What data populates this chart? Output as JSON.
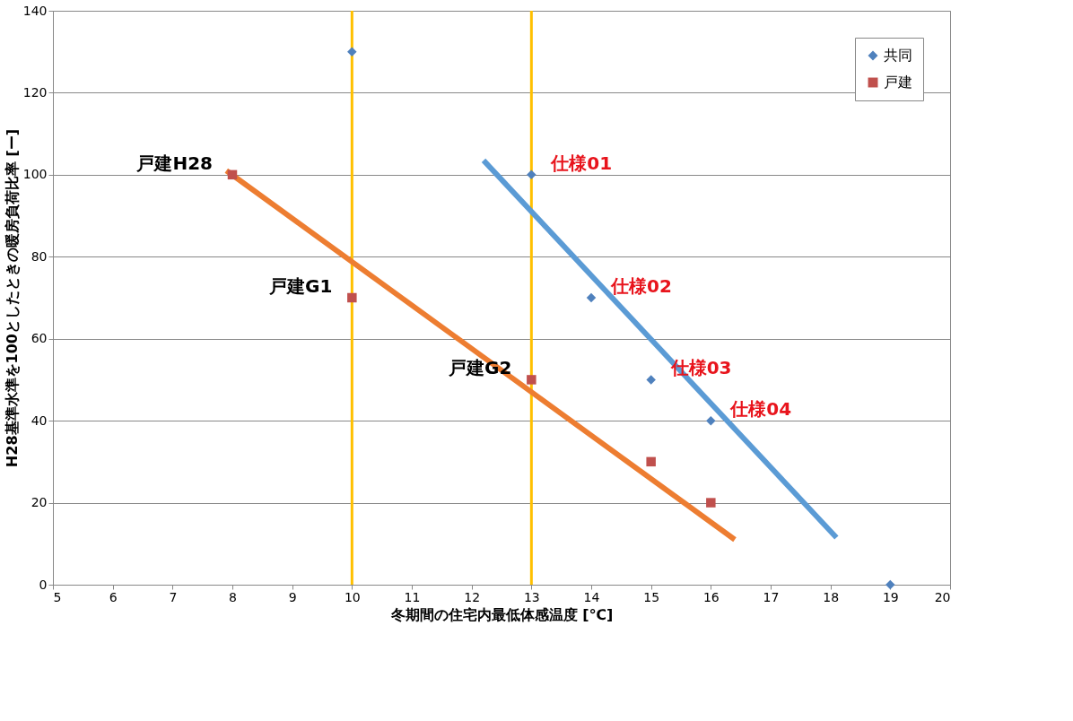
{
  "chart_data": {
    "type": "scatter",
    "xlabel": "冬期間の住宅内最低体感温度 [℃]",
    "ylabel": "H28基準水準を100としたときの暖房負荷比率 [ー]",
    "xlim": [
      5,
      20
    ],
    "xticks": [
      5,
      6,
      7,
      8,
      9,
      10,
      11,
      12,
      13,
      14,
      15,
      16,
      17,
      18,
      19,
      20
    ],
    "ylim": [
      0,
      140
    ],
    "yticks": [
      0,
      20,
      40,
      60,
      80,
      100,
      120,
      140
    ],
    "grid": "y",
    "legend": "top right",
    "series": [
      {
        "name": "共同",
        "marker": "diamond",
        "color": "#4f81bd",
        "x": [
          10,
          13,
          14,
          15,
          16,
          19
        ],
        "values": [
          130,
          100,
          70,
          50,
          40,
          0
        ]
      },
      {
        "name": "戸建",
        "marker": "square",
        "color": "#c0504d",
        "x": [
          8,
          10,
          13,
          15,
          16
        ],
        "values": [
          100,
          70,
          50,
          30,
          20
        ]
      },
      {
        "type": "line",
        "color": "#ed7d31",
        "x": [
          7.9,
          16.4
        ],
        "values": [
          101,
          11
        ]
      },
      {
        "type": "line",
        "color": "#5b9bd5",
        "x": [
          12.2,
          18.1
        ],
        "values": [
          103.5,
          11.5
        ]
      }
    ],
    "ref_lines": [
      {
        "axis": "x",
        "value": 10,
        "color": "#ffc000"
      },
      {
        "axis": "x",
        "value": 13,
        "color": "#ffc000"
      }
    ],
    "annotations": [
      {
        "text": "戸建H28",
        "x": 8,
        "y": 100
      },
      {
        "text": "戸建G1",
        "x": 10,
        "y": 70
      },
      {
        "text": "戸建G2",
        "x": 13,
        "y": 50
      },
      {
        "text": "仕様01",
        "x": 13,
        "y": 100
      },
      {
        "text": "仕様02",
        "x": 14,
        "y": 70
      },
      {
        "text": "仕様03",
        "x": 15,
        "y": 50
      },
      {
        "text": "仕様04",
        "x": 16,
        "y": 40
      }
    ]
  }
}
